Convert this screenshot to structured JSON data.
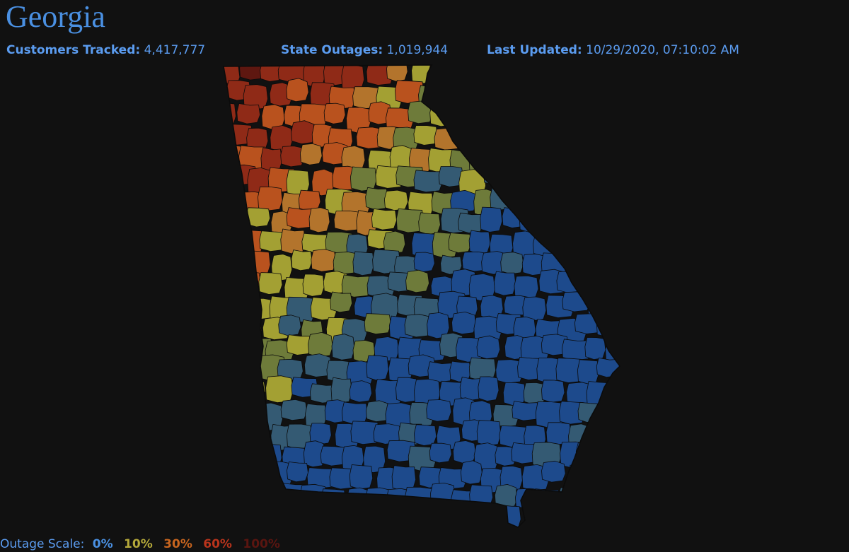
{
  "title": "Georgia",
  "stats": {
    "customers_label": "Customers Tracked:",
    "customers_value": "4,417,777",
    "outages_label": "State Outages:",
    "outages_value": "1,019,944",
    "updated_label": "Last Updated:",
    "updated_value": "10/29/2020, 07:10:02 AM"
  },
  "legend": {
    "label": "Outage Scale:",
    "items": [
      {
        "text": "0%",
        "color": "#4a90e2"
      },
      {
        "text": "10%",
        "color": "#b5a93a"
      },
      {
        "text": "30%",
        "color": "#c8651f"
      },
      {
        "text": "60%",
        "color": "#b9341c"
      },
      {
        "text": "100%",
        "color": "#5a1510"
      }
    ]
  },
  "colors": {
    "background": "#111111",
    "title": "#4a90e2",
    "stat_text": "#5b9cf0",
    "county_border": "#0b0b0b",
    "scale": {
      "pct0": "#1d4a8c",
      "pct5": "#345a73",
      "pct10": "#6e7b3a",
      "pct15": "#a3a033",
      "pct30": "#b3742c",
      "pct45": "#b9521e",
      "pct60": "#8f2a17",
      "pct100": "#5e1710"
    }
  }
}
